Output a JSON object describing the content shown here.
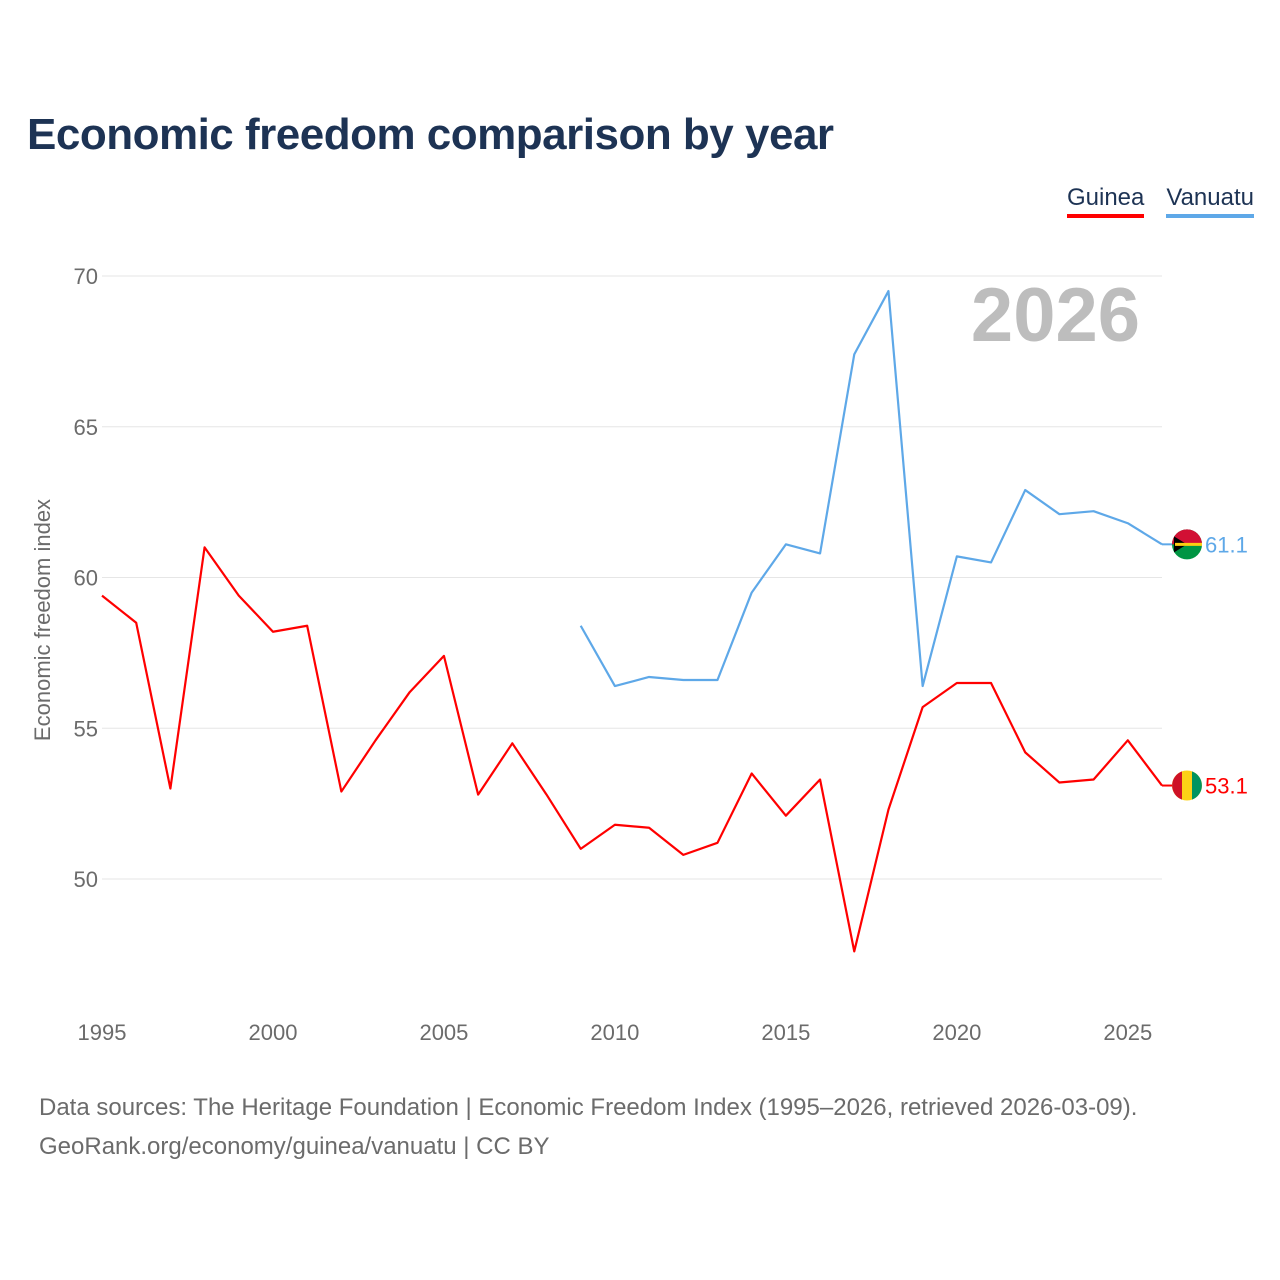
{
  "title": "Economic freedom comparison by year",
  "footer": {
    "line1": "Data sources: The Heritage Foundation | Economic Freedom Index (1995–2026, retrieved 2026-03-09).",
    "line2": "GeoRank.org/economy/guinea/vanuatu | CC BY"
  },
  "chart_data": {
    "type": "line",
    "title": "Economic freedom comparison by year",
    "xlabel": "",
    "ylabel": "Economic freedom index",
    "year_label": "2026",
    "xlim": [
      1995,
      2026
    ],
    "ylim": [
      46,
      70
    ],
    "x_ticks": [
      1995,
      2000,
      2005,
      2010,
      2015,
      2020,
      2025
    ],
    "y_ticks": [
      50,
      55,
      60,
      65,
      70
    ],
    "legend_position": "top-right",
    "series": [
      {
        "name": "Guinea",
        "color": "#ff0000",
        "end_label": "53.1",
        "x": [
          1995,
          1996,
          1997,
          1998,
          1999,
          2000,
          2001,
          2002,
          2003,
          2004,
          2005,
          2006,
          2007,
          2008,
          2009,
          2010,
          2011,
          2012,
          2013,
          2014,
          2015,
          2016,
          2017,
          2018,
          2019,
          2020,
          2021,
          2022,
          2023,
          2024,
          2025,
          2026
        ],
        "values": [
          59.4,
          58.5,
          53.0,
          61.0,
          59.4,
          58.2,
          58.4,
          52.9,
          54.6,
          56.2,
          57.4,
          52.8,
          54.5,
          52.8,
          51.0,
          51.8,
          51.7,
          50.8,
          51.2,
          53.5,
          52.1,
          53.3,
          47.6,
          52.3,
          55.7,
          56.5,
          56.5,
          54.2,
          53.2,
          53.3,
          54.6,
          53.1
        ]
      },
      {
        "name": "Vanuatu",
        "color": "#5ea8e8",
        "end_label": "61.1",
        "x": [
          2009,
          2010,
          2011,
          2012,
          2013,
          2014,
          2015,
          2016,
          2017,
          2018,
          2019,
          2020,
          2021,
          2022,
          2023,
          2024,
          2025,
          2026
        ],
        "values": [
          58.4,
          56.4,
          56.7,
          56.6,
          56.6,
          59.5,
          61.1,
          60.8,
          67.4,
          69.5,
          56.4,
          60.7,
          60.5,
          62.9,
          62.1,
          62.2,
          61.8,
          61.1
        ]
      }
    ]
  }
}
